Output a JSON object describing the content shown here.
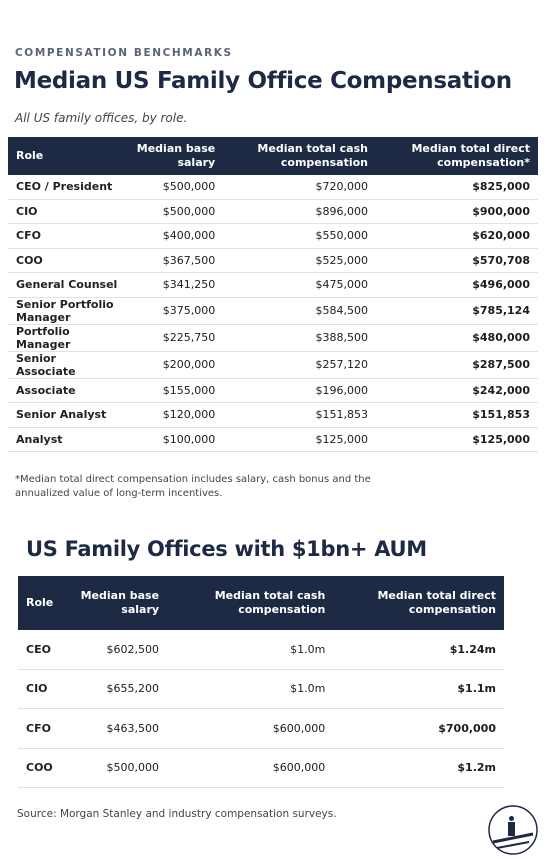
{
  "header": {
    "eyebrow": "COMPENSATION BENCHMARKS",
    "title": "Median US Family Office Compensation",
    "subtitle": "All US family offices, by role."
  },
  "table": {
    "columns": [
      "Role",
      "Median base salary",
      "Median total cash compensation",
      "Median total direct compensation*"
    ],
    "rows": [
      [
        "CEO / President",
        "$500,000",
        "$720,000",
        "$825,000"
      ],
      [
        "CIO",
        "$500,000",
        "$896,000",
        "$900,000"
      ],
      [
        "CFO",
        "$400,000",
        "$550,000",
        "$620,000"
      ],
      [
        "COO",
        "$367,500",
        "$525,000",
        "$570,708"
      ],
      [
        "General Counsel",
        "$341,250",
        "$475,000",
        "$496,000"
      ],
      [
        "Senior Portfolio Manager",
        "$375,000",
        "$584,500",
        "$785,124"
      ],
      [
        "Portfolio Manager",
        "$225,750",
        "$388,500",
        "$480,000"
      ],
      [
        "Senior Associate",
        "$200,000",
        "$257,120",
        "$287,500"
      ],
      [
        "Associate",
        "$155,000",
        "$196,000",
        "$242,000"
      ],
      [
        "Senior Analyst",
        "$120,000",
        "$151,853",
        "$151,853"
      ],
      [
        "Analyst",
        "$100,000",
        "$125,000",
        "$125,000"
      ]
    ]
  },
  "footnote": "*Median total direct compensation includes salary, cash bonus and the annualized value of long-term incentives.",
  "table2": {
    "title": "US Family Offices with $1bn+ AUM",
    "columns": [
      "Role",
      "Median base salary",
      "Median total cash compensation",
      "Median total direct compensation"
    ],
    "rows": [
      [
        "CEO",
        "$602,500",
        "$1.0m",
        "$1.24m"
      ],
      [
        "CIO",
        "$655,200",
        "$1.0m",
        "$1.1m"
      ],
      [
        "CFO",
        "$463,500",
        "$600,000",
        "$700,000"
      ],
      [
        "COO",
        "$500,000",
        "$600,000",
        "$1.2m"
      ]
    ]
  },
  "source": "Source: Morgan Stanley and industry compensation surveys."
}
